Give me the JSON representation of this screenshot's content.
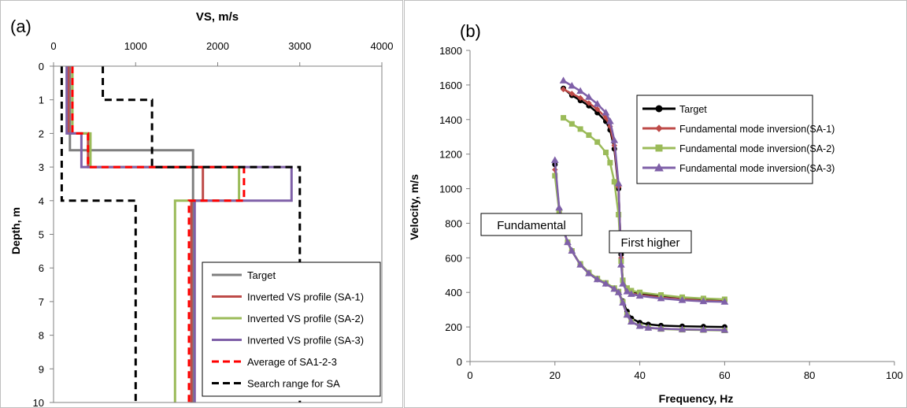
{
  "chart_data": [
    {
      "type": "line",
      "panel_label": "(a)",
      "title": "",
      "xlabel": "VS, m/s",
      "ylabel": "Depth, m",
      "x_axis_position": "top",
      "y_reversed": true,
      "xlim": [
        0,
        4000
      ],
      "ylim": [
        0,
        10
      ],
      "xticks": [
        "0",
        "1000",
        "2000",
        "3000",
        "4000"
      ],
      "yticks": [
        "0",
        "1",
        "2",
        "3",
        "4",
        "5",
        "6",
        "7",
        "8",
        "9",
        "10"
      ],
      "grid": false,
      "legend_position": "bottom-right",
      "series": [
        {
          "name": "Target",
          "color": "#7f7f7f",
          "dash": "solid",
          "points": [
            [
              200,
              0
            ],
            [
              200,
              2.5
            ],
            [
              1700,
              2.5
            ],
            [
              1700,
              10
            ]
          ]
        },
        {
          "name": "Inverted VS profile (SA-1)",
          "color": "#be4b48",
          "dash": "solid",
          "points": [
            [
              180,
              0
            ],
            [
              180,
              2
            ],
            [
              420,
              2
            ],
            [
              420,
              3
            ],
            [
              1820,
              3
            ],
            [
              1820,
              4
            ],
            [
              1680,
              4
            ],
            [
              1680,
              10
            ]
          ]
        },
        {
          "name": "Inverted VS profile (SA-2)",
          "color": "#9bbb59",
          "dash": "solid",
          "points": [
            [
              230,
              0
            ],
            [
              230,
              2
            ],
            [
              450,
              2
            ],
            [
              450,
              3
            ],
            [
              2260,
              3
            ],
            [
              2260,
              4
            ],
            [
              1480,
              4
            ],
            [
              1480,
              10
            ]
          ]
        },
        {
          "name": "Inverted VS profile (SA-3)",
          "color": "#7f60a8",
          "dash": "solid",
          "points": [
            [
              160,
              0
            ],
            [
              160,
              2
            ],
            [
              340,
              2
            ],
            [
              340,
              3
            ],
            [
              2900,
              3
            ],
            [
              2900,
              4
            ],
            [
              1720,
              4
            ],
            [
              1720,
              10
            ]
          ]
        },
        {
          "name": "Average of SA1-2-3",
          "color": "#ff0000",
          "dash": "dashed",
          "points": [
            [
              230,
              0
            ],
            [
              230,
              2
            ],
            [
              420,
              2
            ],
            [
              420,
              3
            ],
            [
              2320,
              3
            ],
            [
              2320,
              4
            ],
            [
              1650,
              4
            ],
            [
              1650,
              10
            ]
          ]
        },
        {
          "name": "Search range for SA",
          "color": "#000000",
          "dash": "dashed",
          "points": [
            [
              100,
              0
            ],
            [
              100,
              4
            ],
            [
              1000,
              4
            ],
            [
              1000,
              10
            ]
          ],
          "points_upper": [
            [
              600,
              0
            ],
            [
              600,
              1
            ],
            [
              1200,
              1
            ],
            [
              1200,
              3
            ],
            [
              3000,
              3
            ],
            [
              3000,
              10
            ]
          ]
        }
      ]
    },
    {
      "type": "line",
      "panel_label": "(b)",
      "title": "",
      "xlabel": "Frequency, Hz",
      "ylabel": "Velocity, m/s",
      "xlim": [
        0,
        100
      ],
      "ylim": [
        0,
        1800
      ],
      "xticks": [
        "0",
        "20",
        "40",
        "60",
        "80",
        "100"
      ],
      "yticks": [
        "0",
        "200",
        "400",
        "600",
        "800",
        "1000",
        "1200",
        "1400",
        "1600",
        "1800"
      ],
      "grid": false,
      "legend_position": "top-right",
      "annotations": [
        "Fundamental",
        "First higher"
      ],
      "series": [
        {
          "name": "Target",
          "color": "#000000",
          "marker": "circle",
          "fundamental": [
            [
              20,
              1140
            ],
            [
              21,
              880
            ],
            [
              22,
              760
            ],
            [
              23,
              690
            ],
            [
              24,
              640
            ],
            [
              26,
              560
            ],
            [
              28,
              510
            ],
            [
              30,
              475
            ],
            [
              32,
              450
            ],
            [
              34,
              420
            ],
            [
              35,
              400
            ],
            [
              36,
              350
            ],
            [
              37,
              290
            ],
            [
              38,
              250
            ],
            [
              40,
              225
            ],
            [
              42,
              215
            ],
            [
              45,
              208
            ],
            [
              50,
              204
            ],
            [
              55,
              202
            ],
            [
              60,
              200
            ]
          ],
          "higher": [
            [
              22,
              1580
            ],
            [
              24,
              1540
            ],
            [
              26,
              1510
            ],
            [
              28,
              1480
            ],
            [
              30,
              1440
            ],
            [
              32,
              1390
            ],
            [
              33,
              1340
            ],
            [
              34,
              1230
            ],
            [
              35,
              1000
            ],
            [
              35.6,
              620
            ],
            [
              36,
              470
            ],
            [
              37,
              420
            ],
            [
              38,
              405
            ],
            [
              40,
              395
            ],
            [
              45,
              380
            ],
            [
              50,
              370
            ],
            [
              55,
              360
            ],
            [
              60,
              355
            ]
          ]
        },
        {
          "name": "Fundamental mode inversion(SA-1)",
          "color": "#be4b48",
          "marker": "diamond",
          "fundamental": [
            [
              20,
              1110
            ],
            [
              21,
              880
            ],
            [
              22,
              760
            ],
            [
              23,
              690
            ],
            [
              24,
              640
            ],
            [
              26,
              560
            ],
            [
              28,
              510
            ],
            [
              30,
              475
            ],
            [
              32,
              450
            ],
            [
              34,
              420
            ],
            [
              35,
              400
            ],
            [
              36,
              340
            ],
            [
              37,
              270
            ],
            [
              38,
              230
            ],
            [
              40,
              205
            ],
            [
              42,
              195
            ],
            [
              45,
              190
            ],
            [
              50,
              186
            ],
            [
              55,
              183
            ],
            [
              60,
              182
            ]
          ],
          "higher": [
            [
              22,
              1575
            ],
            [
              24,
              1550
            ],
            [
              26,
              1525
            ],
            [
              28,
              1495
            ],
            [
              30,
              1460
            ],
            [
              32,
              1410
            ],
            [
              33,
              1360
            ],
            [
              34,
              1250
            ],
            [
              35,
              1010
            ],
            [
              35.6,
              600
            ],
            [
              36,
              460
            ],
            [
              37,
              410
            ],
            [
              38,
              395
            ],
            [
              40,
              385
            ],
            [
              45,
              370
            ],
            [
              50,
              360
            ],
            [
              55,
              352
            ],
            [
              60,
              348
            ]
          ]
        },
        {
          "name": "Fundamental mode inversion(SA-2)",
          "color": "#9bbb59",
          "marker": "square",
          "fundamental": [
            [
              20,
              1075
            ],
            [
              21,
              870
            ],
            [
              22,
              755
            ],
            [
              23,
              690
            ],
            [
              24,
              640
            ],
            [
              26,
              565
            ],
            [
              28,
              515
            ],
            [
              30,
              480
            ],
            [
              32,
              455
            ],
            [
              34,
              425
            ],
            [
              35,
              405
            ],
            [
              36,
              345
            ],
            [
              37,
              270
            ],
            [
              38,
              230
            ],
            [
              40,
              205
            ],
            [
              42,
              195
            ],
            [
              45,
              188
            ],
            [
              50,
              184
            ],
            [
              55,
              182
            ],
            [
              60,
              180
            ]
          ],
          "higher": [
            [
              22,
              1410
            ],
            [
              24,
              1375
            ],
            [
              26,
              1345
            ],
            [
              28,
              1310
            ],
            [
              30,
              1270
            ],
            [
              32,
              1210
            ],
            [
              33,
              1150
            ],
            [
              34,
              1040
            ],
            [
              35,
              850
            ],
            [
              35.6,
              580
            ],
            [
              36,
              470
            ],
            [
              37,
              425
            ],
            [
              38,
              410
            ],
            [
              40,
              400
            ],
            [
              45,
              385
            ],
            [
              50,
              372
            ],
            [
              55,
              365
            ],
            [
              60,
              360
            ]
          ]
        },
        {
          "name": "Fundamental mode inversion(SA-3)",
          "color": "#7f60a8",
          "marker": "triangle",
          "fundamental": [
            [
              20,
              1165
            ],
            [
              21,
              890
            ],
            [
              22,
              760
            ],
            [
              23,
              690
            ],
            [
              24,
              640
            ],
            [
              26,
              560
            ],
            [
              28,
              510
            ],
            [
              30,
              475
            ],
            [
              32,
              450
            ],
            [
              34,
              420
            ],
            [
              35,
              400
            ],
            [
              36,
              340
            ],
            [
              37,
              270
            ],
            [
              38,
              230
            ],
            [
              40,
              205
            ],
            [
              42,
              195
            ],
            [
              45,
              190
            ],
            [
              50,
              186
            ],
            [
              55,
              184
            ],
            [
              60,
              182
            ]
          ],
          "higher": [
            [
              22,
              1625
            ],
            [
              24,
              1595
            ],
            [
              26,
              1565
            ],
            [
              28,
              1530
            ],
            [
              30,
              1490
            ],
            [
              32,
              1440
            ],
            [
              33,
              1390
            ],
            [
              34,
              1280
            ],
            [
              35,
              1030
            ],
            [
              35.6,
              560
            ],
            [
              36,
              450
            ],
            [
              37,
              405
            ],
            [
              38,
              390
            ],
            [
              40,
              380
            ],
            [
              45,
              365
            ],
            [
              50,
              355
            ],
            [
              55,
              348
            ],
            [
              60,
              345
            ]
          ]
        }
      ]
    }
  ]
}
